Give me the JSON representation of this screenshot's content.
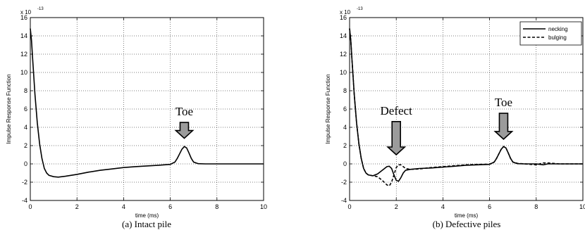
{
  "chart_data": [
    {
      "type": "line",
      "caption": "(a)  Intact pile",
      "xlabel": "time (ms)",
      "ylabel": "Impulse Response Function",
      "y_multiplier": "x 10",
      "y_exponent": "-13",
      "xlim": [
        0,
        10
      ],
      "ylim": [
        -4,
        16
      ],
      "x_ticks": [
        "0",
        "2",
        "4",
        "6",
        "8",
        "10"
      ],
      "y_ticks": [
        "-4",
        "-2",
        "0",
        "2",
        "4",
        "6",
        "8",
        "10",
        "12",
        "14",
        "16"
      ],
      "grid": true,
      "legend": null,
      "annotations": [
        {
          "text": "Toe",
          "x": 6.6,
          "y": 5.3,
          "arrow_tip_y": 2.8
        }
      ],
      "series": [
        {
          "style": "solid",
          "x": [
            0,
            0.05,
            0.1,
            0.15,
            0.2,
            0.3,
            0.4,
            0.5,
            0.6,
            0.7,
            0.8,
            1.0,
            1.2,
            1.5,
            2.0,
            2.5,
            3.0,
            3.5,
            4.0,
            4.5,
            5.0,
            5.5,
            6.0,
            6.2,
            6.3,
            6.4,
            6.5,
            6.6,
            6.7,
            6.8,
            6.9,
            7.0,
            7.2,
            7.5,
            8.0,
            8.5,
            9.0,
            9.5,
            10.0
          ],
          "y": [
            14.8,
            13.5,
            11.5,
            9.5,
            7.6,
            4.5,
            2.2,
            0.6,
            -0.5,
            -1.0,
            -1.25,
            -1.4,
            -1.45,
            -1.35,
            -1.15,
            -0.9,
            -0.7,
            -0.55,
            -0.4,
            -0.3,
            -0.22,
            -0.15,
            -0.05,
            0.2,
            0.6,
            1.1,
            1.6,
            1.9,
            1.75,
            1.2,
            0.6,
            0.2,
            0.02,
            0,
            0,
            0,
            0,
            0,
            0
          ]
        }
      ]
    },
    {
      "type": "line",
      "caption": "(b) Defective piles",
      "xlabel": "time (ms)",
      "ylabel": "Impulse Response Function",
      "y_multiplier": "x 10",
      "y_exponent": "-13",
      "xlim": [
        0,
        10
      ],
      "ylim": [
        -4,
        16
      ],
      "x_ticks": [
        "0",
        "2",
        "4",
        "6",
        "8",
        "10"
      ],
      "y_ticks": [
        "-4",
        "-2",
        "0",
        "2",
        "4",
        "6",
        "8",
        "10",
        "12",
        "14",
        "16"
      ],
      "grid": true,
      "legend": "top-right",
      "annotations": [
        {
          "text": "Defect",
          "x": 2.0,
          "y": 5.4,
          "arrow_tip_y": 1.0
        },
        {
          "text": "Toe",
          "x": 6.6,
          "y": 6.3,
          "arrow_tip_y": 2.7
        }
      ],
      "series": [
        {
          "name": "necking",
          "style": "solid",
          "x": [
            0,
            0.05,
            0.1,
            0.15,
            0.2,
            0.3,
            0.4,
            0.5,
            0.6,
            0.7,
            0.8,
            1.0,
            1.2,
            1.4,
            1.6,
            1.7,
            1.8,
            1.9,
            2.0,
            2.1,
            2.2,
            2.3,
            2.4,
            2.6,
            3.0,
            3.5,
            4.0,
            4.5,
            5.0,
            5.5,
            6.0,
            6.2,
            6.3,
            6.4,
            6.5,
            6.6,
            6.7,
            6.8,
            6.9,
            7.0,
            7.2,
            7.5,
            8.0,
            8.3,
            8.5,
            9.0,
            9.5,
            10.0
          ],
          "y": [
            14.8,
            13.5,
            11.5,
            9.5,
            7.6,
            4.5,
            2.2,
            0.6,
            -0.5,
            -1.0,
            -1.2,
            -1.3,
            -1.1,
            -0.7,
            -0.3,
            -0.25,
            -0.5,
            -1.2,
            -1.8,
            -1.9,
            -1.5,
            -1.0,
            -0.7,
            -0.6,
            -0.5,
            -0.45,
            -0.35,
            -0.25,
            -0.15,
            -0.1,
            -0.05,
            0.2,
            0.6,
            1.1,
            1.6,
            1.9,
            1.75,
            1.2,
            0.6,
            0.2,
            0.02,
            0,
            0,
            -0.1,
            0,
            0,
            0,
            0
          ]
        },
        {
          "name": "bulging",
          "style": "dashed",
          "x": [
            0,
            0.05,
            0.1,
            0.15,
            0.2,
            0.3,
            0.4,
            0.5,
            0.6,
            0.7,
            0.8,
            1.0,
            1.2,
            1.4,
            1.6,
            1.7,
            1.8,
            1.9,
            2.0,
            2.1,
            2.2,
            2.3,
            2.4,
            2.6,
            3.0,
            3.5,
            4.0,
            4.5,
            5.0,
            5.5,
            6.0,
            6.2,
            6.3,
            6.4,
            6.5,
            6.6,
            6.7,
            6.8,
            6.9,
            7.0,
            7.2,
            7.5,
            8.0,
            8.3,
            8.5,
            9.0,
            9.5,
            10.0
          ],
          "y": [
            14.8,
            13.5,
            11.5,
            9.5,
            7.6,
            4.5,
            2.2,
            0.6,
            -0.5,
            -1.0,
            -1.2,
            -1.3,
            -1.4,
            -1.8,
            -2.3,
            -2.4,
            -2.0,
            -1.2,
            -0.4,
            -0.1,
            -0.1,
            -0.3,
            -0.5,
            -0.6,
            -0.55,
            -0.4,
            -0.3,
            -0.2,
            -0.1,
            -0.05,
            -0.03,
            0.2,
            0.6,
            1.1,
            1.6,
            1.9,
            1.75,
            1.2,
            0.6,
            0.2,
            0.05,
            0,
            -0.1,
            0.1,
            0.1,
            0,
            0,
            0
          ]
        }
      ]
    }
  ]
}
